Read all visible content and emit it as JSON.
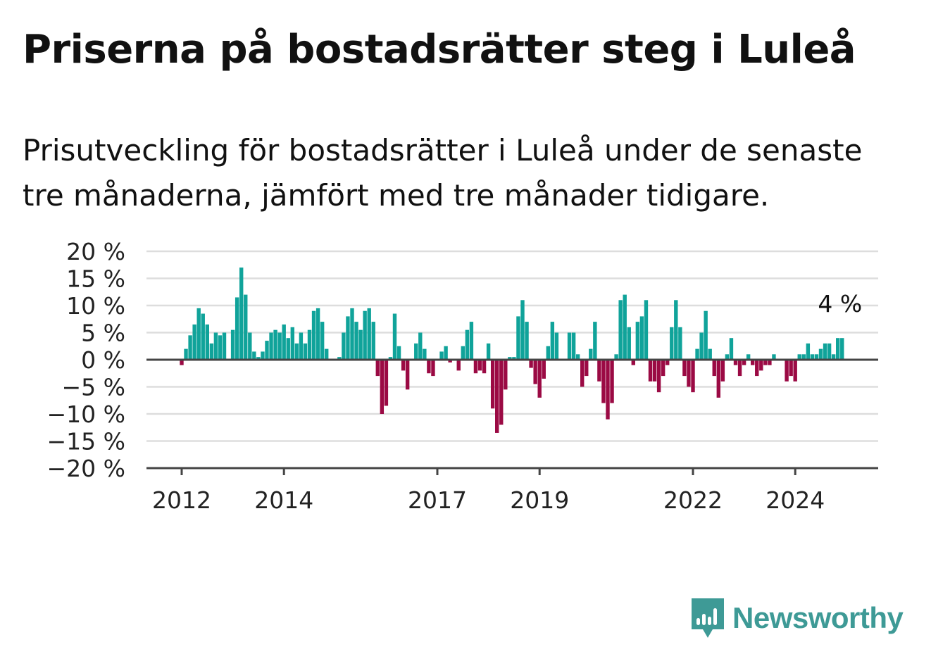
{
  "title": "Priserna på bostadsrätter steg i Luleå",
  "subtitle": "Prisutveckling för bostadsrätter i Luleå under de senaste tre månaderna, jämfört med tre månader tidigare.",
  "brand": "Newsworthy",
  "colors": {
    "positive": "#10a39a",
    "negative": "#9b0a44",
    "grid": "#dddddd",
    "axis": "#444444"
  },
  "chart_data": {
    "type": "bar",
    "x_start": "2012-01",
    "frequency": "monthly",
    "ylim": [
      -20,
      20
    ],
    "y_ticks": [
      20,
      15,
      10,
      5,
      0,
      -5,
      -10,
      -15,
      -20
    ],
    "y_tick_labels": [
      "20 %",
      "15 %",
      "10 %",
      "5 %",
      "0 %",
      "−5 %",
      "−10 %",
      "−15 %",
      "−20 %"
    ],
    "x_tick_labels": [
      "2012",
      "2014",
      "2017",
      "2019",
      "2022",
      "2024"
    ],
    "x_tick_dates": [
      "2012-01",
      "2014-01",
      "2017-01",
      "2019-01",
      "2022-01",
      "2024-01"
    ],
    "last_label": "4 %",
    "values": [
      -1,
      2,
      4.5,
      6.5,
      9.5,
      8.5,
      6.5,
      3,
      5,
      4.5,
      5,
      null,
      5.5,
      11.5,
      17,
      12,
      5,
      1.5,
      0.5,
      1.5,
      3.5,
      5,
      5.5,
      5,
      6.5,
      4,
      6,
      3,
      5,
      3,
      5.5,
      9,
      9.5,
      7,
      2,
      null,
      null,
      0.5,
      5,
      8,
      9.5,
      7,
      5.5,
      9,
      9.5,
      7,
      -3,
      -10,
      -8.5,
      0.5,
      8.5,
      2.5,
      -2,
      -5.5,
      null,
      3,
      5,
      2,
      -2.5,
      -3,
      null,
      1.5,
      2.5,
      -0.5,
      null,
      -2,
      2.5,
      5.5,
      7,
      -2.5,
      -2,
      -2.5,
      3,
      -9,
      -13.5,
      -12,
      -5.5,
      0.5,
      0.5,
      8,
      11,
      7,
      -1.5,
      -4.5,
      -7,
      -3.5,
      2.5,
      7,
      5,
      null,
      null,
      5,
      5,
      1,
      -5,
      -3,
      2,
      7,
      -4,
      -8,
      -11,
      -8,
      1,
      11,
      12,
      6,
      -1,
      7,
      8,
      11,
      -4,
      -4,
      -6,
      -3,
      -1,
      6,
      11,
      6,
      -3,
      -5,
      -6,
      2,
      5,
      9,
      2,
      -3,
      -7,
      -4,
      1,
      4,
      -1,
      -3,
      -1,
      1,
      -1,
      -3,
      -2,
      -1,
      -1,
      1,
      null,
      null,
      -4,
      -3,
      -4,
      1,
      1,
      3,
      1,
      1,
      2,
      3,
      3,
      1,
      4,
      4
    ]
  }
}
